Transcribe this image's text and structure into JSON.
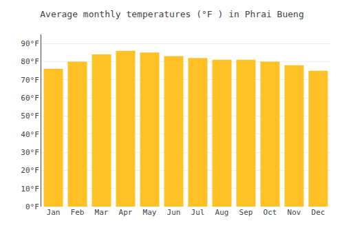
{
  "chart_data": {
    "type": "bar",
    "title": "Average monthly temperatures (°F ) in Phrai Bueng",
    "categories": [
      "Jan",
      "Feb",
      "Mar",
      "Apr",
      "May",
      "Jun",
      "Jul",
      "Aug",
      "Sep",
      "Oct",
      "Nov",
      "Dec"
    ],
    "values": [
      76,
      80,
      84,
      86,
      85,
      83,
      82,
      81,
      81,
      80,
      78,
      75
    ],
    "color": "#FFC125",
    "ylim": [
      0,
      95
    ],
    "yticks": [
      {
        "value": 0,
        "label": "0°F"
      },
      {
        "value": 10,
        "label": "10°F"
      },
      {
        "value": 20,
        "label": "20°F"
      },
      {
        "value": 30,
        "label": "30°F"
      },
      {
        "value": 40,
        "label": "40°F"
      },
      {
        "value": 50,
        "label": "50°F"
      },
      {
        "value": 60,
        "label": "60°F"
      },
      {
        "value": 70,
        "label": "70°F"
      },
      {
        "value": 80,
        "label": "80°F"
      },
      {
        "value": 90,
        "label": "90°F"
      }
    ],
    "grid": true
  }
}
